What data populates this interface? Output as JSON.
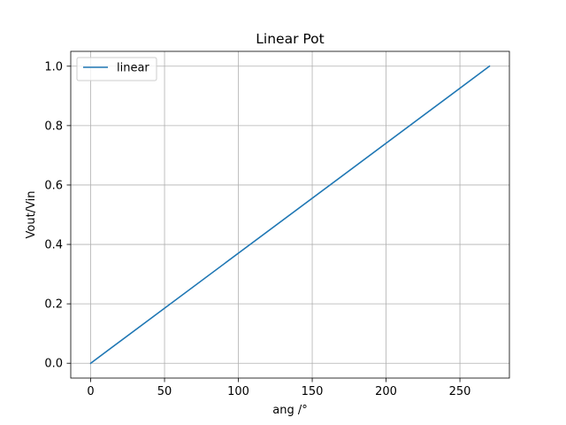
{
  "chart_data": {
    "type": "line",
    "title": "Linear Pot",
    "xlabel": "ang /°",
    "ylabel": "Vout/Vin",
    "xlim": [
      -13.5,
      283.5
    ],
    "ylim": [
      -0.05,
      1.05
    ],
    "xticks": [
      0,
      50,
      100,
      150,
      200,
      250
    ],
    "xtick_labels": [
      "0",
      "50",
      "100",
      "150",
      "200",
      "250"
    ],
    "yticks": [
      0.0,
      0.2,
      0.4,
      0.6,
      0.8,
      1.0
    ],
    "ytick_labels": [
      "0.0",
      "0.2",
      "0.4",
      "0.6",
      "0.8",
      "1.0"
    ],
    "grid": true,
    "legend_position": "upper-left",
    "series": [
      {
        "name": "linear",
        "color": "#1f77b4",
        "x": [
          0,
          270
        ],
        "y": [
          0.0,
          1.0
        ]
      }
    ]
  }
}
